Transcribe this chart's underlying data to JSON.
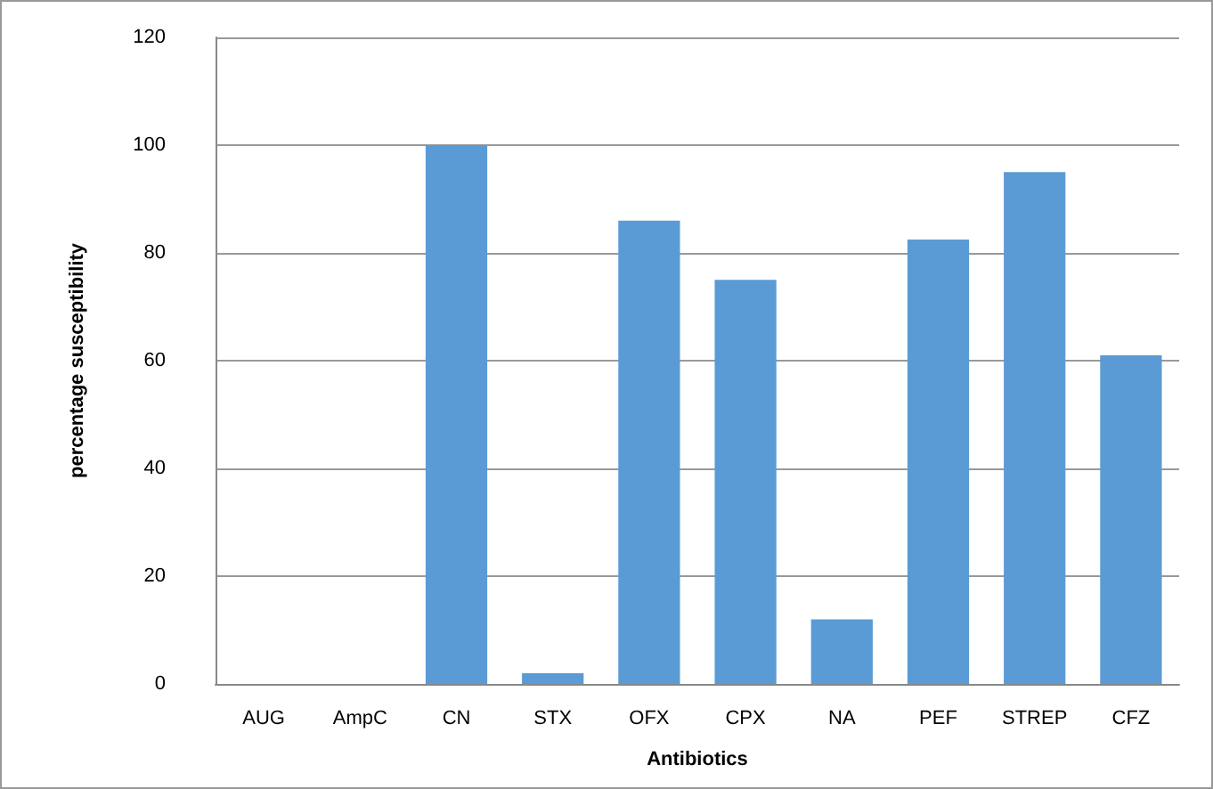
{
  "chart_data": {
    "type": "bar",
    "xlabel": "Antibiotics",
    "ylabel": "percentage susceptibility",
    "categories": [
      "AUG",
      "AmpC",
      "CN",
      "STX",
      "OFX",
      "CPX",
      "NA",
      "PEF",
      "STREP",
      "CFZ"
    ],
    "values": [
      0,
      0,
      100,
      2,
      86,
      75,
      12,
      82.5,
      95,
      61
    ],
    "color": "#5b9bd5",
    "ylim": [
      0,
      120
    ],
    "yticks": [
      0,
      20,
      40,
      60,
      80,
      100,
      120
    ],
    "grid": "y"
  }
}
